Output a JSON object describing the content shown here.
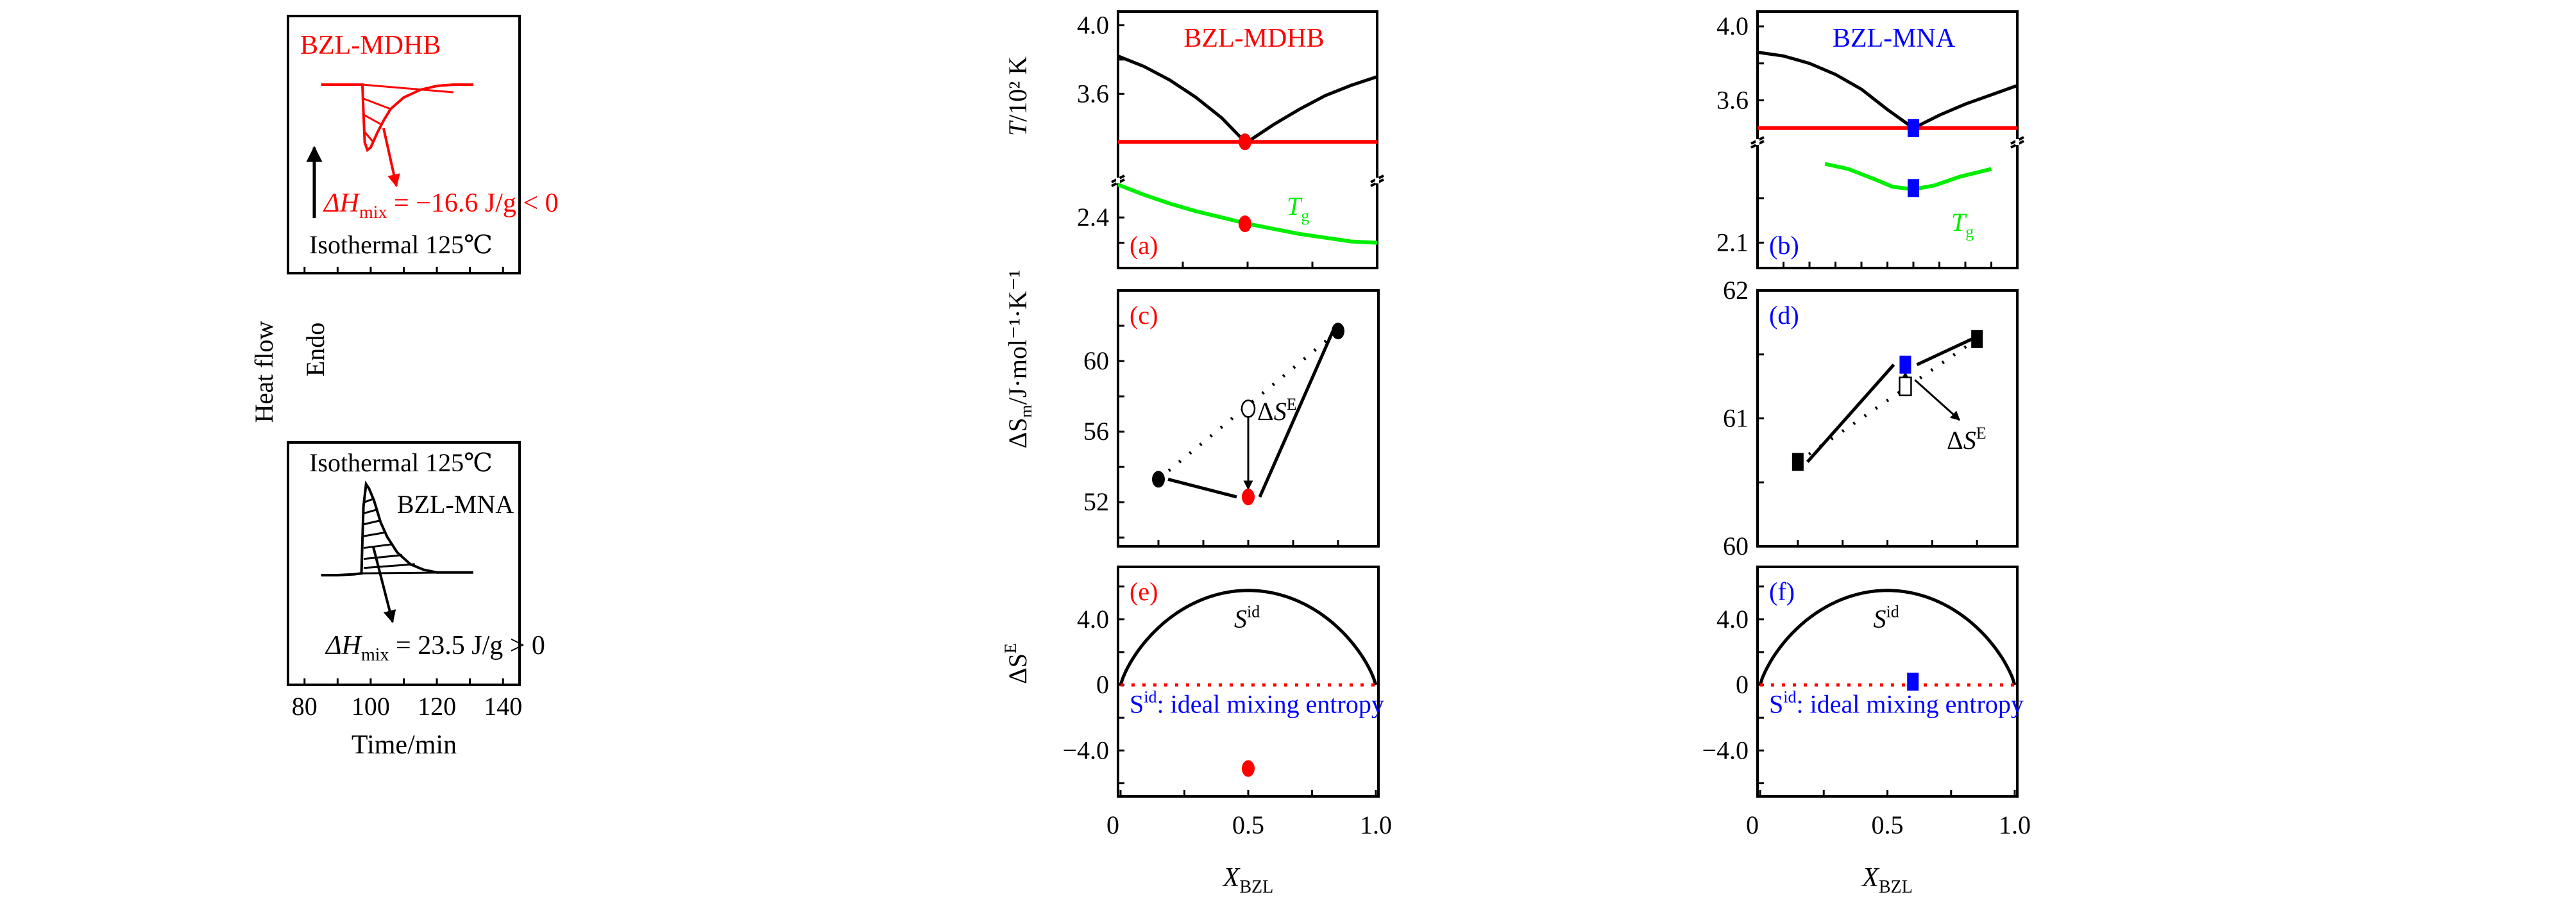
{
  "figure": {
    "colors": {
      "mdhb": "#ff0000",
      "mna": "#0000ff",
      "tg": "#00ee00",
      "axis": "#000000",
      "ref_line": "#ff0000"
    }
  },
  "chart_data": [
    {
      "id": "dsc-mdhb",
      "type": "line",
      "title": "BZL-MDHB",
      "xlabel": "",
      "ylabel": "Heat flow",
      "ylabel_note": "Endo",
      "xlim": [
        75,
        145
      ],
      "xticks": [
        80,
        90,
        100,
        110,
        120,
        130,
        140
      ],
      "grid": false,
      "series": [
        {
          "name": "BZL-MDHB isothermal DSC (exothermic dip)",
          "color": "#ff0000",
          "x": [
            85,
            90,
            95,
            97.5,
            97.7,
            98.2,
            99,
            100,
            102,
            104,
            106,
            110,
            115,
            120,
            125,
            131
          ],
          "y": [
            0,
            0,
            0,
            0,
            -0.3,
            -0.9,
            -1.02,
            -0.98,
            -0.75,
            -0.55,
            -0.38,
            -0.2,
            -0.08,
            -0.02,
            0,
            0
          ]
        }
      ],
      "annotations": [
        {
          "text": "ΔH_mix = −16.6 J/g < 0",
          "value": -16.6,
          "unit": "J/g"
        },
        {
          "text": "Isothermal 125℃"
        }
      ]
    },
    {
      "id": "dsc-mna",
      "type": "line",
      "title": "BZL-MNA",
      "xlabel": "Time/min",
      "ylabel": "Heat flow",
      "xlim": [
        75,
        145
      ],
      "xticks": [
        80,
        100,
        120,
        140
      ],
      "grid": false,
      "series": [
        {
          "name": "BZL-MNA isothermal DSC (endothermic peak)",
          "color": "#000000",
          "x": [
            85,
            90,
            95,
            97.2,
            97.8,
            98.6,
            99.5,
            101,
            103,
            105,
            108,
            112,
            116,
            120,
            125,
            131
          ],
          "y": [
            0,
            0,
            0.01,
            0.02,
            0.75,
            1.0,
            0.95,
            0.82,
            0.58,
            0.42,
            0.25,
            0.12,
            0.06,
            0.03,
            0.03,
            0.03
          ]
        }
      ],
      "annotations": [
        {
          "text": "ΔH_mix = 23.5 J/g > 0",
          "value": 23.5,
          "unit": "J/g"
        },
        {
          "text": "Isothermal 125℃"
        }
      ]
    },
    {
      "id": "a",
      "panel_label": "(a)",
      "type": "line",
      "title": "BZL-MDHB",
      "ylabel": "T/10² K",
      "xlim": [
        0,
        1
      ],
      "ylim_upper": [
        3.1,
        4.08
      ],
      "ylim_lower": [
        2.0,
        2.7
      ],
      "yticks_labeled": [
        "4.0",
        "3.6",
        "2.4"
      ],
      "axis_break": true,
      "series": [
        {
          "name": "liquidus",
          "color": "#000000",
          "x": [
            0,
            0.1,
            0.2,
            0.3,
            0.4,
            0.49,
            0.5,
            0.6,
            0.7,
            0.8,
            0.9,
            1.0
          ],
          "y": [
            3.82,
            3.76,
            3.68,
            3.58,
            3.46,
            3.32,
            3.32,
            3.42,
            3.51,
            3.59,
            3.65,
            3.7
          ]
        },
        {
          "name": "eutectic",
          "color": "#ff0000",
          "x": [
            0,
            1
          ],
          "y": [
            3.32,
            3.32
          ]
        },
        {
          "name": "T_g",
          "color": "#00ee00",
          "x": [
            0,
            0.1,
            0.2,
            0.3,
            0.4,
            0.5,
            0.6,
            0.7,
            0.8,
            0.9,
            1.0
          ],
          "y": [
            2.66,
            2.58,
            2.51,
            2.45,
            2.4,
            2.35,
            2.31,
            2.27,
            2.24,
            2.21,
            2.2
          ]
        }
      ],
      "points": [
        {
          "x": 0.49,
          "y": 3.32,
          "shape": "circle",
          "color": "#ff0000"
        },
        {
          "x": 0.49,
          "y": 2.35,
          "shape": "circle",
          "color": "#ff0000"
        }
      ],
      "labels": [
        "T_g"
      ]
    },
    {
      "id": "b",
      "panel_label": "(b)",
      "type": "line",
      "title": "BZL-MNA",
      "xlim": [
        0,
        1
      ],
      "ylim_upper": [
        3.38,
        4.08
      ],
      "ylim_lower": [
        1.9,
        2.9
      ],
      "yticks_labeled": [
        "4.0",
        "3.6",
        "2.1"
      ],
      "axis_break": true,
      "series": [
        {
          "name": "liquidus",
          "color": "#000000",
          "x": [
            0,
            0.1,
            0.2,
            0.3,
            0.4,
            0.5,
            0.6,
            0.7,
            0.8,
            0.9,
            1.0
          ],
          "y": [
            3.86,
            3.84,
            3.8,
            3.74,
            3.66,
            3.55,
            3.45,
            3.52,
            3.58,
            3.63,
            3.68
          ]
        },
        {
          "name": "eutectic",
          "color": "#ff0000",
          "x": [
            0,
            1
          ],
          "y": [
            3.45,
            3.45
          ]
        },
        {
          "name": "T_g",
          "color": "#00ee00",
          "x": [
            0.26,
            0.35,
            0.45,
            0.52,
            0.6,
            0.68,
            0.78,
            0.9
          ],
          "y": [
            2.72,
            2.68,
            2.6,
            2.54,
            2.52,
            2.55,
            2.62,
            2.68
          ]
        }
      ],
      "points": [
        {
          "x": 0.6,
          "y": 3.45,
          "shape": "square",
          "color": "#0000ff"
        },
        {
          "x": 0.6,
          "y": 2.53,
          "shape": "square",
          "color": "#0000ff"
        }
      ],
      "labels": [
        "T_g"
      ]
    },
    {
      "id": "c",
      "panel_label": "(c)",
      "type": "scatter",
      "ylabel": "ΔS_m/J·mol⁻¹·K⁻¹",
      "xlim": [
        -0.08,
        1.08
      ],
      "ylim": [
        49.5,
        64
      ],
      "yticks": [
        52,
        56,
        60
      ],
      "points": [
        {
          "x": 0.1,
          "y": 53.3,
          "shape": "circle",
          "color": "#000000",
          "filled": true
        },
        {
          "x": 0.5,
          "y": 52.3,
          "shape": "circle",
          "color": "#ff0000",
          "filled": true
        },
        {
          "x": 0.5,
          "y": 57.3,
          "shape": "circle",
          "color": "#000000",
          "filled": false
        },
        {
          "x": 0.9,
          "y": 61.7,
          "shape": "circle",
          "color": "#000000",
          "filled": true
        }
      ],
      "annotations": [
        {
          "text": "ΔS^E"
        }
      ]
    },
    {
      "id": "d",
      "panel_label": "(d)",
      "type": "scatter",
      "xlim": [
        -0.08,
        1.08
      ],
      "ylim": [
        60,
        62
      ],
      "yticks": [
        60,
        61,
        62
      ],
      "points": [
        {
          "x": 0.1,
          "y": 60.66,
          "shape": "square",
          "color": "#000000",
          "filled": true
        },
        {
          "x": 0.58,
          "y": 61.42,
          "shape": "square",
          "color": "#0000ff",
          "filled": true
        },
        {
          "x": 0.58,
          "y": 61.25,
          "shape": "square",
          "color": "#000000",
          "filled": false
        },
        {
          "x": 0.9,
          "y": 61.62,
          "shape": "square",
          "color": "#000000",
          "filled": true
        }
      ],
      "annotations": [
        {
          "text": "ΔS^E"
        }
      ]
    },
    {
      "id": "e",
      "panel_label": "(e)",
      "type": "line",
      "xlabel": "X_BZL",
      "ylabel": "ΔS^E",
      "xlim": [
        -0.01,
        1.01
      ],
      "ylim": [
        -6.8,
        7.2
      ],
      "xticks": [
        "0",
        "0.5",
        "1.0"
      ],
      "yticks": [
        "4.0",
        "0",
        "−4.0"
      ],
      "series": [
        {
          "name": "S^id",
          "color": "#000000",
          "function": "ideal_mixing_entropy",
          "peak": 5.76
        },
        {
          "name": "zero",
          "color": "#ff0000",
          "style": "dotted",
          "y": 0
        }
      ],
      "points": [
        {
          "x": 0.5,
          "y": -5.1,
          "shape": "circle",
          "color": "#ff0000"
        }
      ],
      "labels": [
        "S^id",
        "S^id: ideal mixing entropy"
      ]
    },
    {
      "id": "f",
      "panel_label": "(f)",
      "type": "line",
      "xlabel": "X_BZL",
      "xlim": [
        -0.01,
        1.01
      ],
      "ylim": [
        -6.8,
        7.2
      ],
      "xticks": [
        "0",
        "0.5",
        "1.0"
      ],
      "yticks": [
        "4.0",
        "0",
        "−4.0"
      ],
      "series": [
        {
          "name": "S^id",
          "color": "#000000",
          "function": "ideal_mixing_entropy",
          "peak": 5.76
        },
        {
          "name": "zero",
          "color": "#ff0000",
          "style": "dotted",
          "y": 0
        }
      ],
      "points": [
        {
          "x": 0.6,
          "y": 0.2,
          "shape": "square",
          "color": "#0000ff"
        }
      ],
      "labels": [
        "S^id",
        "S^id: ideal mixing entropy"
      ]
    }
  ],
  "text": {
    "mdhb_title": "BZL-MDHB",
    "mna_title": "BZL-MNA",
    "dh_mdhb_prefix": "ΔH",
    "dh_sub": "mix",
    "dh_mdhb_suffix": " = −16.6 J/g < 0",
    "dh_mna_suffix": " = 23.5 J/g > 0",
    "isothermal": "Isothermal 125℃",
    "heat_flow": "Heat flow",
    "endo": "Endo",
    "time_label": "Time/min",
    "dsc_xticks": [
      "80",
      "100",
      "120",
      "140"
    ],
    "t_label_main": "T",
    "t_label_rest": "/10² K",
    "ds_label": "ΔS",
    "ds_sub": "m",
    "ds_rest": "/J·mol⁻¹·K⁻¹",
    "dse_label": "ΔS",
    "dse_sup": "E",
    "tg_main": "T",
    "tg_sub": "g",
    "sid_main": "S",
    "sid_sup": "id",
    "sid_legend_main": "S",
    "sid_legend_rest": ": ideal mixing entropy",
    "x_label_main": "X",
    "x_label_sub": "BZL",
    "panel_a": "(a)",
    "panel_b": "(b)",
    "panel_c": "(c)",
    "panel_d": "(d)",
    "panel_e": "(e)",
    "panel_f": "(f)",
    "a_yticks": [
      "4.0",
      "3.6",
      "2.4"
    ],
    "b_yticks": [
      "4.0",
      "3.6",
      "2.1"
    ],
    "c_yticks": [
      "60",
      "56",
      "52"
    ],
    "d_yticks": [
      "62",
      "61",
      "60"
    ],
    "ef_yticks": [
      "4.0",
      "0",
      "−4.0"
    ],
    "x_ticks": [
      "0",
      "0.5",
      "1.0"
    ]
  }
}
